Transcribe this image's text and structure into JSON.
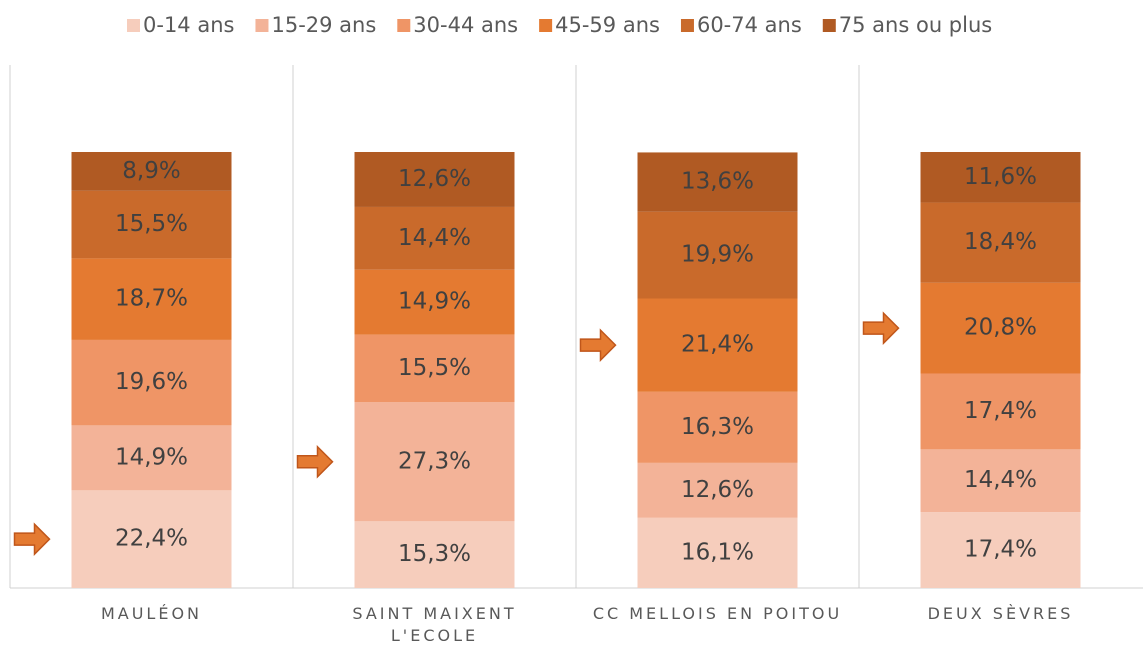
{
  "chart_data": {
    "type": "stacked_bar",
    "categories": [
      "MAULÉON",
      "SAINT MAIXENT\nL'ECOLE",
      "CC MELLOIS EN POITOU",
      "DEUX SÈVRES"
    ],
    "ylim": [
      0,
      100
    ],
    "series": [
      {
        "name": "0-14 ans",
        "color": "#f6cdbc",
        "values": [
          22.4,
          15.3,
          16.1,
          17.4
        ],
        "value_labels": [
          "22,4%",
          "15,3%",
          "16,1%",
          "17,4%"
        ]
      },
      {
        "name": "15-29 ans",
        "color": "#f3b398",
        "values": [
          14.9,
          27.3,
          12.6,
          14.4
        ],
        "value_labels": [
          "14,9%",
          "27,3%",
          "12,6%",
          "14,4%"
        ]
      },
      {
        "name": "30-44 ans",
        "color": "#ef9566",
        "values": [
          19.6,
          15.5,
          16.3,
          17.4
        ],
        "value_labels": [
          "19,6%",
          "15,5%",
          "16,3%",
          "17,4%"
        ]
      },
      {
        "name": "45-59 ans",
        "color": "#e47a31",
        "values": [
          18.7,
          14.9,
          21.4,
          20.8
        ],
        "value_labels": [
          "18,7%",
          "14,9%",
          "21,4%",
          "20,8%"
        ]
      },
      {
        "name": "60-74 ans",
        "color": "#c96a2b",
        "values": [
          15.5,
          14.4,
          19.9,
          18.4
        ],
        "value_labels": [
          "15,5%",
          "14,4%",
          "19,9%",
          "18,4%"
        ]
      },
      {
        "name": "75 ans ou plus",
        "color": "#b05a23",
        "values": [
          8.9,
          12.6,
          13.6,
          11.6
        ],
        "value_labels": [
          "8,9%",
          "12,6%",
          "13,6%",
          "11,6%"
        ]
      }
    ]
  }
}
